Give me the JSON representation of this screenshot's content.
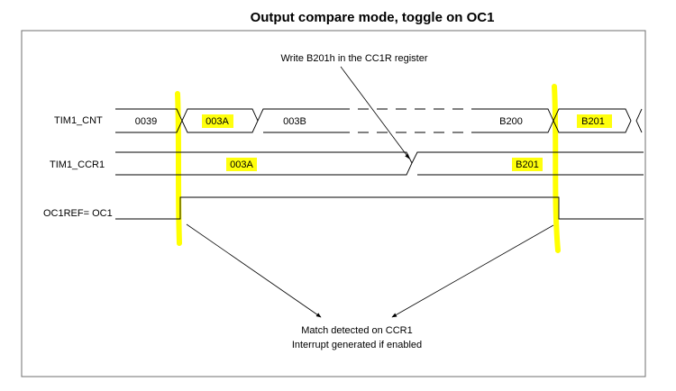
{
  "title": "Output compare mode, toggle on OC1",
  "signals": {
    "cnt": "TIM1_CNT",
    "ccr": "TIM1_CCR1",
    "oc": "OC1REF= OC1"
  },
  "cnt_values": [
    "0039",
    "003A",
    "003B",
    "B200",
    "B201"
  ],
  "ccr_values": [
    "003A",
    "B201"
  ],
  "annotations": {
    "write": "Write B201h in the CC1R register",
    "match_line1": "Match detected on CCR1",
    "match_line2": "Interrupt generated if enabled"
  },
  "colors": {
    "highlight": "#ffff00",
    "line": "#000000",
    "border": "#6f6f6f"
  }
}
